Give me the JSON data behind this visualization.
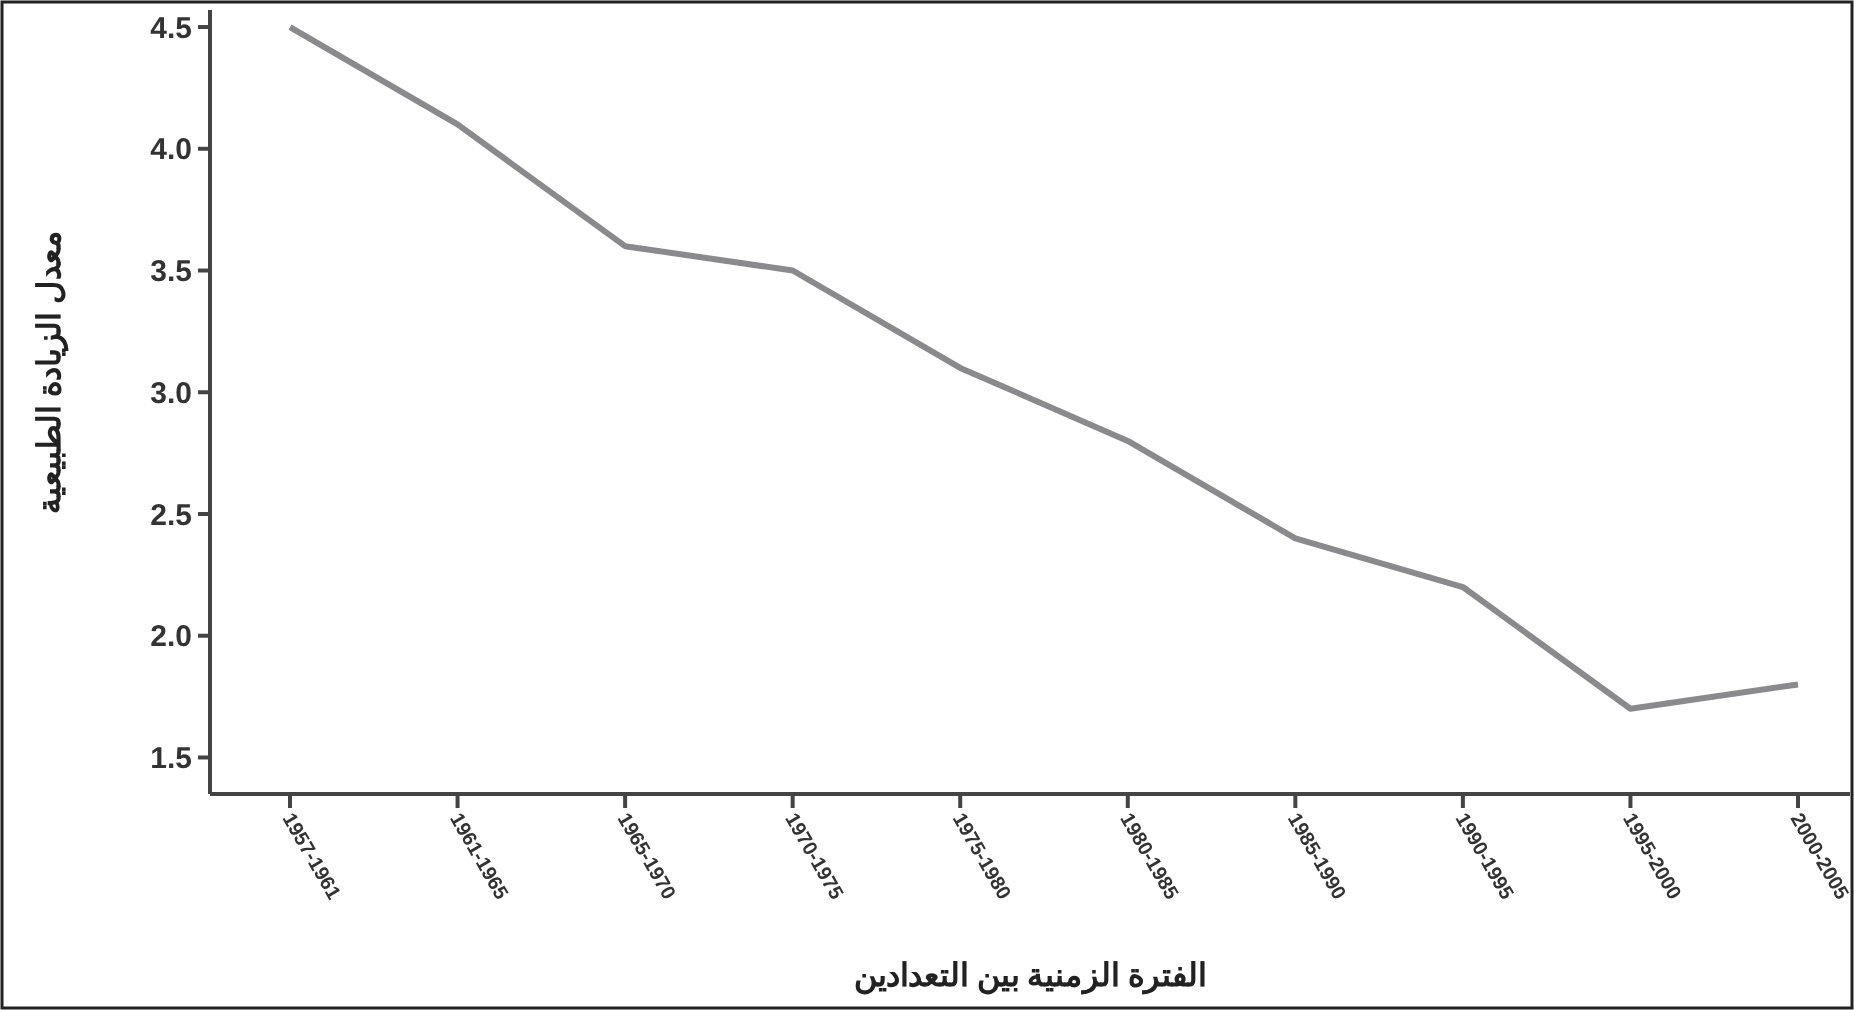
{
  "chart_data": {
    "type": "line",
    "xlabel": "الفترة الزمنية بين التعدادين",
    "ylabel": "معدل الزيادة الطبيعية",
    "categories": [
      "1957-1961",
      "1961-1965",
      "1965-1970",
      "1970-1975",
      "1975-1980",
      "1980-1985",
      "1985-1990",
      "1990-1995",
      "1995-2000",
      "2000-2005"
    ],
    "series": [
      {
        "color": "#8a8a8e",
        "values": [
          4.5,
          4.1,
          3.6,
          3.5,
          3.1,
          2.8,
          2.4,
          2.2,
          1.7,
          1.8
        ]
      }
    ],
    "ylim": [
      1.35,
      4.57
    ],
    "yticks": [
      {
        "value": 1.5,
        "label": "1.5"
      },
      {
        "value": 2,
        "label": "2.0"
      },
      {
        "value": 2.5,
        "label": "2.5"
      },
      {
        "value": 3,
        "label": "3.0"
      },
      {
        "value": 3.5,
        "label": "3.5"
      },
      {
        "value": 4,
        "label": "4.0"
      },
      {
        "value": 4.5,
        "label": "4.5"
      }
    ],
    "grid": false,
    "marker": "none",
    "line_style": "solid"
  }
}
